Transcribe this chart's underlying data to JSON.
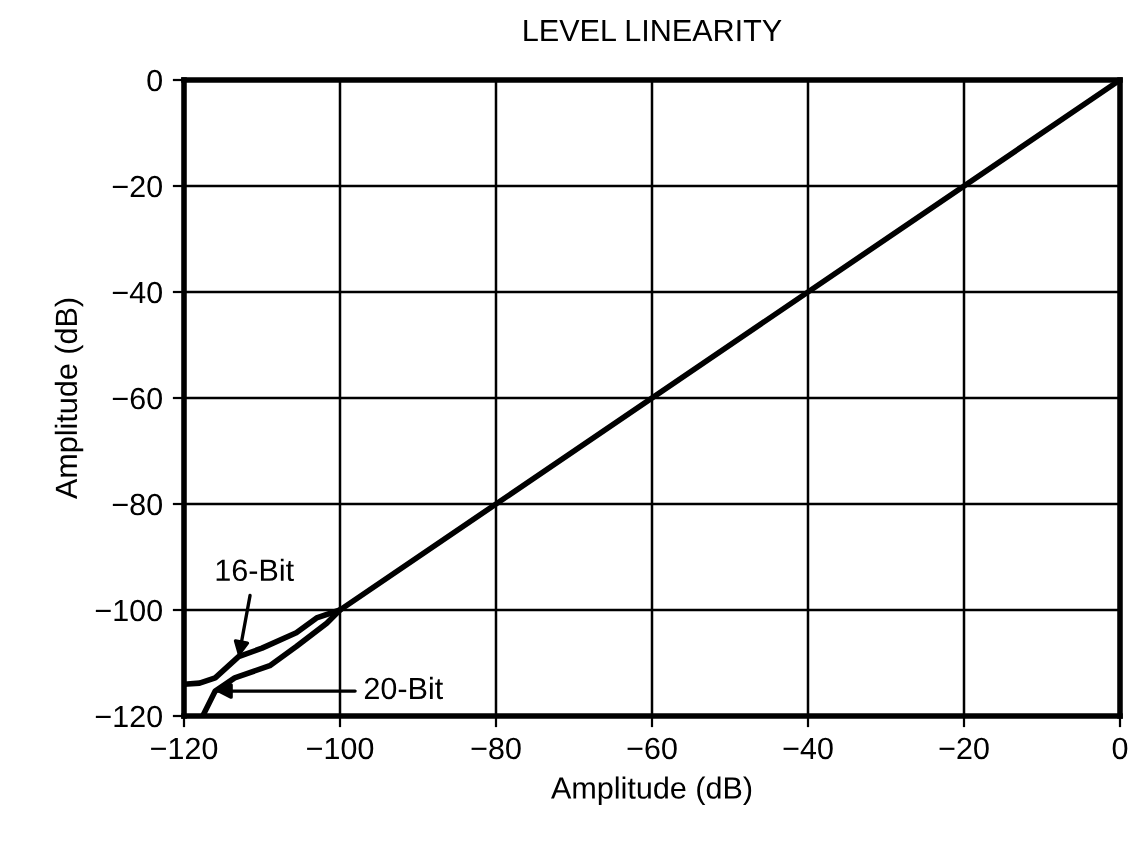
{
  "chart_data": {
    "type": "line",
    "title": "LEVEL LINEARITY",
    "xlabel": "Amplitude (dB)",
    "ylabel": "Amplitude (dB)",
    "xlim": [
      -120,
      0
    ],
    "ylim": [
      -120,
      0
    ],
    "xticks": [
      {
        "value": -120,
        "label": "−120"
      },
      {
        "value": -100,
        "label": "−100"
      },
      {
        "value": -80,
        "label": "−80"
      },
      {
        "value": -60,
        "label": "−60"
      },
      {
        "value": -40,
        "label": "−40"
      },
      {
        "value": -20,
        "label": "−20"
      },
      0
    ],
    "yticks": [
      {
        "value": -120,
        "label": "−120"
      },
      {
        "value": -100,
        "label": "−100"
      },
      {
        "value": -80,
        "label": "−80"
      },
      {
        "value": -60,
        "label": "−60"
      },
      {
        "value": -40,
        "label": "−40"
      },
      {
        "value": -20,
        "label": "−20"
      },
      0
    ],
    "grid": true,
    "legend": false,
    "series": [
      {
        "color": "#000000",
        "x": [
          -120,
          -118,
          -116,
          -113,
          -110,
          -105.6,
          -103,
          -100,
          0
        ],
        "values": [
          -114,
          -113.8,
          -112.8,
          -108.8,
          -107.2,
          -104.3,
          -101.5,
          -100,
          0
        ]
      },
      {
        "color": "#000000",
        "x": [
          -117.6,
          -116,
          -113.5,
          -109,
          -105.6,
          -101.7,
          -100
        ],
        "values": [
          -120,
          -115.3,
          -112.8,
          -110.5,
          -106.9,
          -102.5,
          -100
        ]
      }
    ],
    "annotations": [
      {
        "text": "16-Bit",
        "x": -113,
        "y": -109
      },
      "20-Bit"
    ]
  }
}
